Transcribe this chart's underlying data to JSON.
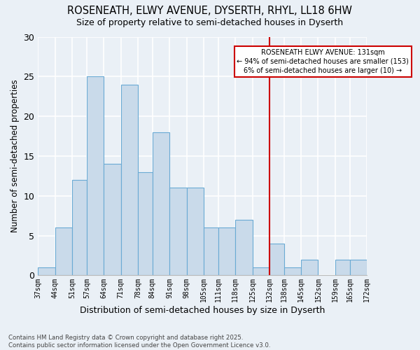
{
  "title": "ROSENEATH, ELWY AVENUE, DYSERTH, RHYL, LL18 6HW",
  "subtitle": "Size of property relative to semi-detached houses in Dyserth",
  "xlabel": "Distribution of semi-detached houses by size in Dyserth",
  "ylabel": "Number of semi-detached properties",
  "bar_color": "#c9daea",
  "bar_edge_color": "#6aaad4",
  "background_color": "#eaf0f6",
  "grid_color": "#ffffff",
  "annotation_box_color": "#cc0000",
  "annotation_line_color": "#cc0000",
  "annotation_title": "ROSENEATH ELWY AVENUE: 131sqm",
  "annotation_line1": "← 94% of semi-detached houses are smaller (153)",
  "annotation_line2": "6% of semi-detached houses are larger (10) →",
  "property_line_x": 132,
  "bins": [
    37,
    44,
    51,
    57,
    64,
    71,
    78,
    84,
    91,
    98,
    105,
    111,
    118,
    125,
    132,
    138,
    145,
    152,
    159,
    165,
    172
  ],
  "counts": [
    1,
    6,
    12,
    25,
    14,
    24,
    13,
    18,
    11,
    11,
    6,
    6,
    7,
    1,
    4,
    1,
    2,
    0,
    2,
    2
  ],
  "tick_labels": [
    "37sqm",
    "44sqm",
    "51sqm",
    "57sqm",
    "64sqm",
    "71sqm",
    "78sqm",
    "84sqm",
    "91sqm",
    "98sqm",
    "105sqm",
    "111sqm",
    "118sqm",
    "125sqm",
    "132sqm",
    "138sqm",
    "145sqm",
    "152sqm",
    "159sqm",
    "165sqm",
    "172sqm"
  ],
  "ylim": [
    0,
    30
  ],
  "yticks": [
    0,
    5,
    10,
    15,
    20,
    25,
    30
  ],
  "footer_line1": "Contains HM Land Registry data © Crown copyright and database right 2025.",
  "footer_line2": "Contains public sector information licensed under the Open Government Licence v3.0."
}
